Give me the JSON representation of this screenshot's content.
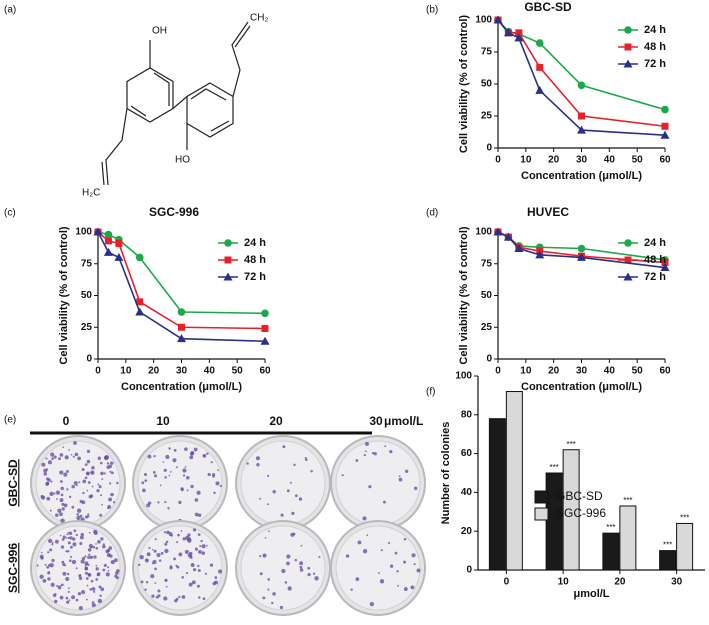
{
  "panel_labels": [
    "(a)",
    "(b)",
    "(c)",
    "(d)",
    "(e)",
    "(f)"
  ],
  "structure": {
    "top_oh": "OH",
    "bottom_ho": "HO",
    "top_ch2": "CH₂",
    "bottom_h2c": "H₂C"
  },
  "colony_assay": {
    "concentrations": [
      "0",
      "10",
      "20",
      "30"
    ],
    "unit": "μmol/L",
    "rows": [
      "GBC-SD",
      "SGC-996"
    ]
  },
  "chart_data": [
    {
      "type": "line",
      "title": "GBC-SD",
      "x_label": "Concentration (μmol/L)",
      "y_label": "Cell viability (% of control)",
      "x": [
        0,
        3.75,
        7.5,
        15,
        30,
        60
      ],
      "xlim": [
        0,
        60
      ],
      "xticks": [
        0,
        10,
        20,
        30,
        40,
        50,
        60
      ],
      "ylim": [
        0,
        100
      ],
      "yticks": [
        0,
        25,
        50,
        75,
        100
      ],
      "series": [
        {
          "name": "24 h",
          "color": "#1aa84a",
          "marker": "circle",
          "values": [
            100,
            91,
            89,
            82,
            49,
            30
          ]
        },
        {
          "name": "48 h",
          "color": "#e8202a",
          "marker": "square",
          "values": [
            100,
            90,
            90,
            63,
            25,
            17
          ]
        },
        {
          "name": "72 h",
          "color": "#2a2f8a",
          "marker": "triangle",
          "values": [
            100,
            90,
            86,
            45,
            14,
            10
          ]
        }
      ]
    },
    {
      "type": "line",
      "title": "SGC-996",
      "x_label": "Concentration (μmol/L)",
      "y_label": "Cell viability (% of control)",
      "x": [
        0,
        3.75,
        7.5,
        15,
        30,
        60
      ],
      "xlim": [
        0,
        60
      ],
      "xticks": [
        0,
        10,
        20,
        30,
        40,
        50,
        60
      ],
      "ylim": [
        0,
        100
      ],
      "yticks": [
        0,
        25,
        50,
        75,
        100
      ],
      "series": [
        {
          "name": "24 h",
          "color": "#1aa84a",
          "marker": "circle",
          "values": [
            100,
            98,
            94,
            80,
            37,
            36
          ]
        },
        {
          "name": "48 h",
          "color": "#e8202a",
          "marker": "square",
          "values": [
            100,
            93,
            91,
            45,
            25,
            24
          ]
        },
        {
          "name": "72 h",
          "color": "#2a2f8a",
          "marker": "triangle",
          "values": [
            100,
            84,
            80,
            37,
            16,
            14
          ]
        }
      ]
    },
    {
      "type": "line",
      "title": "HUVEC",
      "x_label": "Concentration (μmol/L)",
      "y_label": "Cell viability (% of control)",
      "x": [
        0,
        3.75,
        7.5,
        15,
        30,
        60
      ],
      "xlim": [
        0,
        60
      ],
      "xticks": [
        0,
        10,
        20,
        30,
        40,
        50,
        60
      ],
      "ylim": [
        0,
        100
      ],
      "yticks": [
        0,
        25,
        50,
        75,
        100
      ],
      "series": [
        {
          "name": "24 h",
          "color": "#1aa84a",
          "marker": "circle",
          "values": [
            100,
            96,
            89,
            88,
            87,
            78
          ]
        },
        {
          "name": "48 h",
          "color": "#e8202a",
          "marker": "square",
          "values": [
            100,
            96,
            88,
            85,
            81,
            76
          ]
        },
        {
          "name": "72 h",
          "color": "#2a2f8a",
          "marker": "triangle",
          "values": [
            100,
            96,
            87,
            82,
            80,
            72
          ]
        }
      ]
    },
    {
      "type": "bar",
      "x_label": "μmol/L",
      "y_label": "Number of colonies",
      "categories": [
        "0",
        "10",
        "20",
        "30"
      ],
      "ylim": [
        0,
        100
      ],
      "yticks": [
        0,
        20,
        40,
        60,
        80,
        100
      ],
      "series": [
        {
          "name": "GBC-SD",
          "color": "#1a1a1a",
          "values": [
            78,
            50,
            19,
            10
          ],
          "significance": [
            null,
            "***",
            "***",
            "***"
          ]
        },
        {
          "name": "SGC-996",
          "color": "#d9d9d9",
          "values": [
            92,
            62,
            33,
            24
          ],
          "significance": [
            null,
            "***",
            "***",
            "***"
          ]
        }
      ]
    }
  ]
}
